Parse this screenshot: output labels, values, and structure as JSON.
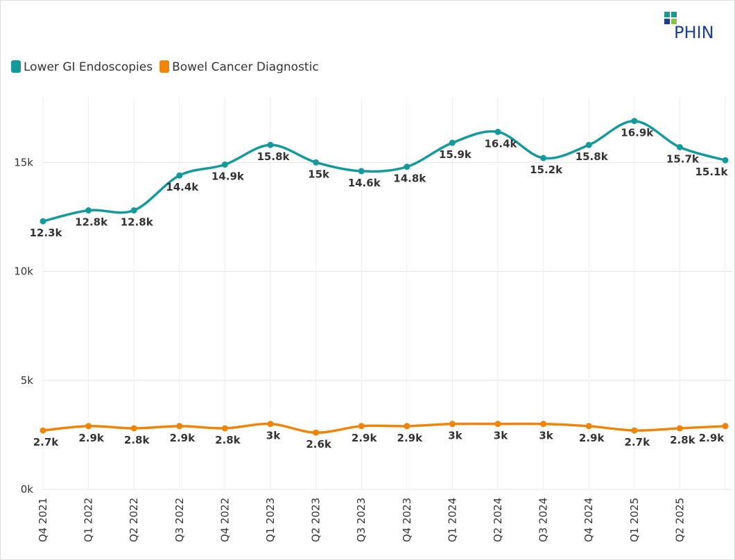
{
  "logo": "PHIN",
  "chart_data": {
    "type": "line",
    "categories": [
      "Q4 2021",
      "Q1 2022",
      "Q2 2022",
      "Q3 2022",
      "Q4 2022",
      "Q1 2023",
      "Q2 2023",
      "Q3 2023",
      "Q4 2023",
      "Q1 2024",
      "Q2 2024",
      "Q3 2024",
      "Q4 2024",
      "Q1 2025",
      "Q2 2025",
      null
    ],
    "series": [
      {
        "name": "Lower GI Endoscopies",
        "color": "#15999b",
        "values": [
          12300,
          12800,
          12800,
          14400,
          14900,
          15800,
          15000,
          14600,
          14800,
          15900,
          16400,
          15200,
          15800,
          16900,
          15700,
          15100
        ],
        "value_labels": [
          "12.3k",
          "12.8k",
          "12.8k",
          "14.4k",
          "14.9k",
          "15.8k",
          "15k",
          "14.6k",
          "14.8k",
          "15.9k",
          "16.4k",
          "15.2k",
          "15.8k",
          "16.9k",
          "15.7k",
          "15.1k"
        ]
      },
      {
        "name": "Bowel Cancer Diagnostic",
        "color": "#ee8408",
        "values": [
          2700,
          2900,
          2800,
          2900,
          2800,
          3000,
          2600,
          2900,
          2900,
          3000,
          3000,
          3000,
          2900,
          2700,
          2800,
          2900
        ],
        "value_labels": [
          "2.7k",
          "2.9k",
          "2.8k",
          "2.9k",
          "2.8k",
          "3k",
          "2.6k",
          "2.9k",
          "2.9k",
          "3k",
          "3k",
          "3k",
          "2.9k",
          "2.7k",
          "2.8k",
          "2.9k"
        ]
      }
    ],
    "ylim": [
      0,
      18000
    ],
    "yticks": [
      {
        "value": 0,
        "label": "0k"
      },
      {
        "value": 5000,
        "label": "5k"
      },
      {
        "value": 10000,
        "label": "10k"
      },
      {
        "value": 15000,
        "label": "15k"
      }
    ],
    "grid": true,
    "legend": "top-left"
  }
}
